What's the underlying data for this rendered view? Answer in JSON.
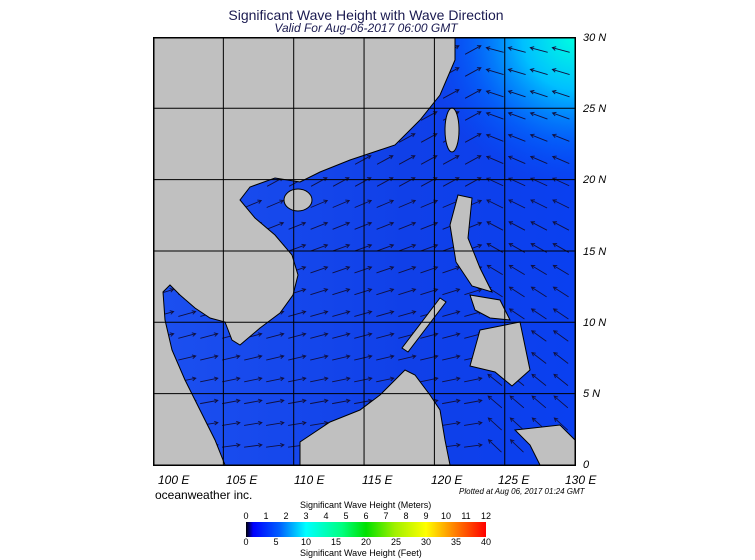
{
  "header": {
    "title": "Significant Wave Height with Wave Direction",
    "subtitle": "Valid For Aug-06-2017 06:00 GMT"
  },
  "map": {
    "lat_labels": [
      "30 N",
      "25 N",
      "20 N",
      "15 N",
      "10 N",
      "5 N",
      "0"
    ],
    "lon_labels": [
      "100 E",
      "105 E",
      "110 E",
      "115 E",
      "120 E",
      "125 E",
      "130 E"
    ],
    "lon_range": [
      100,
      130
    ],
    "lat_range": [
      0,
      30
    ],
    "grid_step_deg": 5,
    "colors": {
      "ocean": "#1448ee",
      "land": "#c0c0c0",
      "high_waves": "#00e8f0"
    }
  },
  "footer": {
    "brand": "oceanweather inc.",
    "plotted": "Plotted at Aug 06, 2017 01:24 GMT"
  },
  "colorbar": {
    "title_meters": "Significant Wave Height (Meters)",
    "title_feet": "Significant Wave Height (Feet)",
    "meters": [
      "0",
      "1",
      "2",
      "3",
      "4",
      "5",
      "6",
      "7",
      "8",
      "9",
      "10",
      "11",
      "12"
    ],
    "feet": [
      "0",
      "5",
      "10",
      "15",
      "20",
      "25",
      "30",
      "35",
      "40"
    ]
  }
}
